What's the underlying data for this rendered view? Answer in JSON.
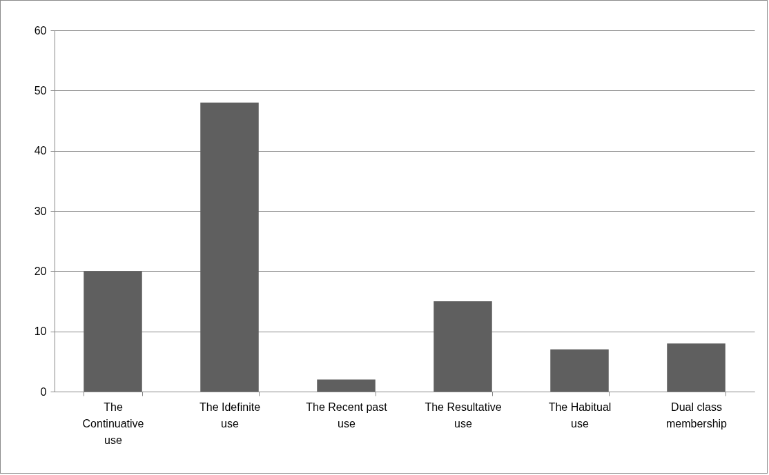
{
  "chart_data": {
    "type": "bar",
    "categories": [
      "The Continuative use",
      "The Idefinite use",
      "The Recent past use",
      "The Resultative use",
      "The Habitual use",
      "Dual class membership"
    ],
    "values": [
      20,
      48,
      2,
      15,
      7,
      8
    ],
    "color": "#5f5f5f",
    "ylim": [
      0,
      60
    ],
    "yticks": [
      0,
      10,
      20,
      30,
      40,
      50,
      60
    ],
    "grid": "y"
  }
}
